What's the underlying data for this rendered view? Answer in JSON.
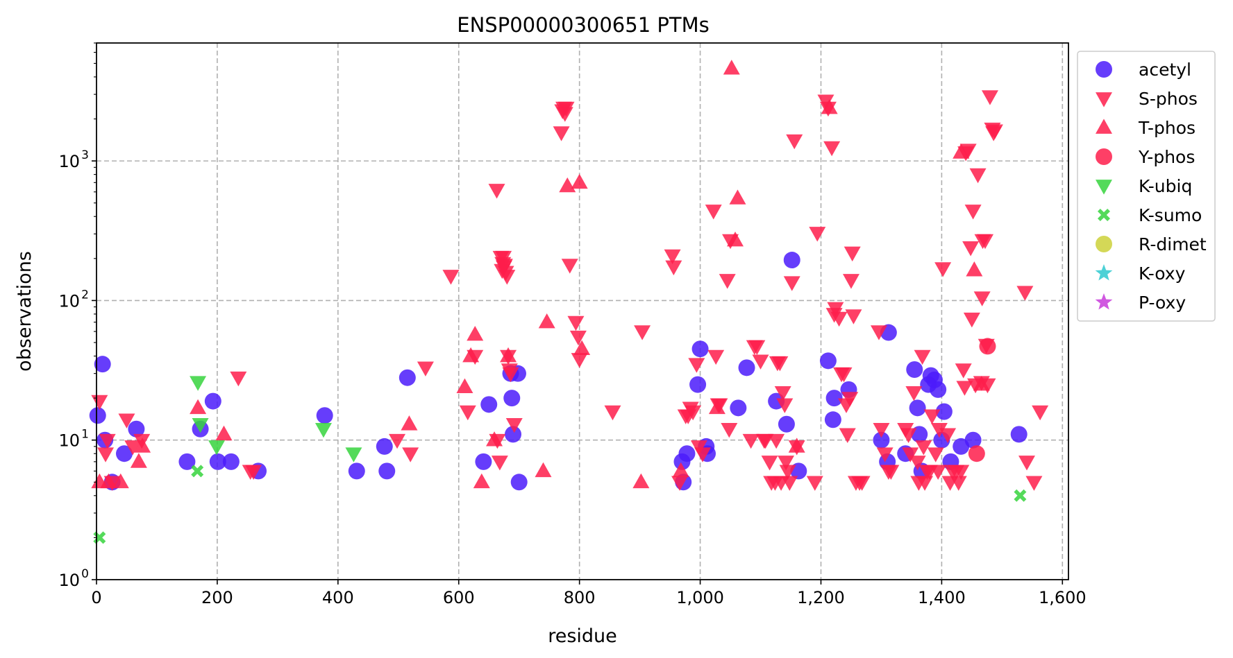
{
  "chart_data": {
    "type": "scatter",
    "title": "ENSP00000300651 PTMs",
    "xlabel": "residue",
    "ylabel": "observations",
    "xlim": [
      0,
      1610
    ],
    "ylim": [
      1,
      7000
    ],
    "yscale": "log",
    "grid": true,
    "legend_position": "outside-right",
    "x_ticks": [
      {
        "value": 0,
        "label": "0"
      },
      {
        "value": 200,
        "label": "200"
      },
      {
        "value": 400,
        "label": "400"
      },
      {
        "value": 600,
        "label": "600"
      },
      {
        "value": 800,
        "label": "800"
      },
      {
        "value": 1000,
        "label": "1,000"
      },
      {
        "value": 1200,
        "label": "1,200"
      },
      {
        "value": 1400,
        "label": "1,400"
      },
      {
        "value": 1600,
        "label": "1,600"
      }
    ],
    "y_ticks": [
      {
        "value": 1,
        "base": "10",
        "exp": "0"
      },
      {
        "value": 10,
        "base": "10",
        "exp": "1"
      },
      {
        "value": 100,
        "base": "10",
        "exp": "2"
      },
      {
        "value": 1000,
        "base": "10",
        "exp": "3"
      }
    ],
    "series": [
      {
        "name": "acetyl",
        "marker": "circle",
        "color": "#4b1bfa",
        "points": [
          [
            2,
            15
          ],
          [
            10,
            35
          ],
          [
            14,
            10
          ],
          [
            26,
            5
          ],
          [
            46,
            8
          ],
          [
            66,
            12
          ],
          [
            150,
            7
          ],
          [
            172,
            12
          ],
          [
            193,
            19
          ],
          [
            201,
            7
          ],
          [
            223,
            7
          ],
          [
            268,
            6
          ],
          [
            378,
            15
          ],
          [
            431,
            6
          ],
          [
            477,
            9
          ],
          [
            481,
            6
          ],
          [
            515,
            28
          ],
          [
            650,
            18
          ],
          [
            641,
            7
          ],
          [
            686,
            30
          ],
          [
            688,
            20
          ],
          [
            690,
            11
          ],
          [
            698,
            30
          ],
          [
            700,
            5
          ],
          [
            970,
            7
          ],
          [
            972,
            5
          ],
          [
            978,
            8
          ],
          [
            996,
            25
          ],
          [
            1000,
            45
          ],
          [
            1010,
            9
          ],
          [
            1012,
            8
          ],
          [
            1063,
            17
          ],
          [
            1077,
            33
          ],
          [
            1126,
            19
          ],
          [
            1143,
            13
          ],
          [
            1152,
            195
          ],
          [
            1163,
            6
          ],
          [
            1212,
            37
          ],
          [
            1220,
            14
          ],
          [
            1222,
            20
          ],
          [
            1246,
            23
          ],
          [
            1300,
            10
          ],
          [
            1310,
            7
          ],
          [
            1312,
            59
          ],
          [
            1340,
            8
          ],
          [
            1355,
            32
          ],
          [
            1360,
            17
          ],
          [
            1363,
            11
          ],
          [
            1367,
            6
          ],
          [
            1378,
            25
          ],
          [
            1382,
            29
          ],
          [
            1388,
            27
          ],
          [
            1394,
            23
          ],
          [
            1400,
            10
          ],
          [
            1404,
            16
          ],
          [
            1415,
            7
          ],
          [
            1432,
            9
          ],
          [
            1452,
            10
          ],
          [
            1528,
            11
          ]
        ]
      },
      {
        "name": "S-phos",
        "marker": "triangle-down",
        "color": "#fe1d4b",
        "points": [
          [
            5,
            19
          ],
          [
            15,
            8
          ],
          [
            18,
            10
          ],
          [
            26,
            5
          ],
          [
            50,
            14
          ],
          [
            60,
            9
          ],
          [
            75,
            10
          ],
          [
            235,
            28
          ],
          [
            255,
            6
          ],
          [
            260,
            6
          ],
          [
            498,
            10
          ],
          [
            520,
            8
          ],
          [
            545,
            33
          ],
          [
            587,
            150
          ],
          [
            615,
            16
          ],
          [
            627,
            40
          ],
          [
            663,
            620
          ],
          [
            664,
            10
          ],
          [
            668,
            7
          ],
          [
            670,
            205
          ],
          [
            672,
            165
          ],
          [
            673,
            185
          ],
          [
            674,
            205
          ],
          [
            675,
            175
          ],
          [
            676,
            180
          ],
          [
            678,
            160
          ],
          [
            680,
            150
          ],
          [
            682,
            40
          ],
          [
            684,
            32
          ],
          [
            686,
            30
          ],
          [
            692,
            13
          ],
          [
            770,
            1600
          ],
          [
            772,
            2300
          ],
          [
            774,
            2400
          ],
          [
            776,
            2200
          ],
          [
            778,
            2400
          ],
          [
            784,
            180
          ],
          [
            794,
            70
          ],
          [
            798,
            55
          ],
          [
            800,
            38
          ],
          [
            855,
            16
          ],
          [
            904,
            60
          ],
          [
            954,
            210
          ],
          [
            956,
            175
          ],
          [
            966,
            5
          ],
          [
            976,
            15
          ],
          [
            980,
            15
          ],
          [
            984,
            17
          ],
          [
            988,
            16
          ],
          [
            994,
            35
          ],
          [
            998,
            9
          ],
          [
            1004,
            8
          ],
          [
            1022,
            440
          ],
          [
            1026,
            40
          ],
          [
            1030,
            18
          ],
          [
            1032,
            18
          ],
          [
            1045,
            140
          ],
          [
            1050,
            270
          ],
          [
            1048,
            12
          ],
          [
            1084,
            10
          ],
          [
            1090,
            47
          ],
          [
            1094,
            47
          ],
          [
            1100,
            37
          ],
          [
            1106,
            10
          ],
          [
            1108,
            10
          ],
          [
            1115,
            7
          ],
          [
            1118,
            5
          ],
          [
            1124,
            5
          ],
          [
            1126,
            10
          ],
          [
            1128,
            36
          ],
          [
            1132,
            36
          ],
          [
            1134,
            5
          ],
          [
            1137,
            22
          ],
          [
            1140,
            18
          ],
          [
            1142,
            7
          ],
          [
            1145,
            6
          ],
          [
            1148,
            5
          ],
          [
            1152,
            135
          ],
          [
            1156,
            1400
          ],
          [
            1160,
            9
          ],
          [
            1190,
            5
          ],
          [
            1194,
            305
          ],
          [
            1208,
            2700
          ],
          [
            1212,
            2400
          ],
          [
            1218,
            1250
          ],
          [
            1222,
            80
          ],
          [
            1224,
            88
          ],
          [
            1230,
            75
          ],
          [
            1234,
            30
          ],
          [
            1238,
            30
          ],
          [
            1242,
            18
          ],
          [
            1244,
            11
          ],
          [
            1248,
            20
          ],
          [
            1250,
            140
          ],
          [
            1252,
            220
          ],
          [
            1254,
            78
          ],
          [
            1258,
            5
          ],
          [
            1264,
            5
          ],
          [
            1268,
            5
          ],
          [
            1296,
            60
          ],
          [
            1300,
            12
          ],
          [
            1306,
            8
          ],
          [
            1312,
            6
          ],
          [
            1316,
            6
          ],
          [
            1340,
            12
          ],
          [
            1345,
            11
          ],
          [
            1348,
            8
          ],
          [
            1354,
            22
          ],
          [
            1360,
            7
          ],
          [
            1362,
            5
          ],
          [
            1368,
            40
          ],
          [
            1370,
            9
          ],
          [
            1372,
            5
          ],
          [
            1376,
            6
          ],
          [
            1380,
            6
          ],
          [
            1384,
            15
          ],
          [
            1390,
            8
          ],
          [
            1394,
            6
          ],
          [
            1396,
            12
          ],
          [
            1402,
            170
          ],
          [
            1410,
            11
          ],
          [
            1414,
            5
          ],
          [
            1418,
            6
          ],
          [
            1424,
            6
          ],
          [
            1428,
            5
          ],
          [
            1432,
            6
          ],
          [
            1436,
            32
          ],
          [
            1438,
            24
          ],
          [
            1440,
            1150
          ],
          [
            1444,
            1200
          ],
          [
            1448,
            240
          ],
          [
            1450,
            74
          ],
          [
            1452,
            440
          ],
          [
            1456,
            25
          ],
          [
            1460,
            800
          ],
          [
            1466,
            26
          ],
          [
            1467,
            105
          ],
          [
            1468,
            270
          ],
          [
            1472,
            270
          ],
          [
            1474,
            48
          ],
          [
            1476,
            25
          ],
          [
            1480,
            2900
          ],
          [
            1484,
            1700
          ],
          [
            1486,
            1600
          ],
          [
            1488,
            1650
          ],
          [
            1538,
            115
          ],
          [
            1541,
            7
          ],
          [
            1553,
            5
          ],
          [
            1563,
            16
          ]
        ]
      },
      {
        "name": "T-phos",
        "marker": "triangle-up",
        "color": "#fe1d4b",
        "points": [
          [
            5,
            5
          ],
          [
            20,
            5
          ],
          [
            40,
            5
          ],
          [
            70,
            7
          ],
          [
            76,
            9
          ],
          [
            168,
            17
          ],
          [
            211,
            11
          ],
          [
            518,
            13
          ],
          [
            610,
            24
          ],
          [
            620,
            40
          ],
          [
            627,
            57
          ],
          [
            638,
            5
          ],
          [
            659,
            10
          ],
          [
            682,
            40
          ],
          [
            740,
            6
          ],
          [
            746,
            70
          ],
          [
            780,
            660
          ],
          [
            800,
            700
          ],
          [
            804,
            45
          ],
          [
            902,
            5
          ],
          [
            968,
            6
          ],
          [
            1028,
            17
          ],
          [
            1052,
            4600
          ],
          [
            1058,
            270
          ],
          [
            1062,
            540
          ],
          [
            1160,
            9
          ],
          [
            1214,
            2400
          ],
          [
            1432,
            1150
          ],
          [
            1454,
            165
          ],
          [
            1466,
            25
          ]
        ]
      },
      {
        "name": "Y-phos",
        "marker": "circle",
        "color": "#fe1d4b",
        "points": [
          [
            1458,
            8
          ],
          [
            1476,
            47
          ]
        ]
      },
      {
        "name": "K-ubiq",
        "marker": "triangle-down",
        "color": "#36d33d",
        "points": [
          [
            168,
            26
          ],
          [
            172,
            13
          ],
          [
            199,
            9
          ],
          [
            376,
            12
          ],
          [
            426,
            8
          ]
        ]
      },
      {
        "name": "K-sumo",
        "marker": "x",
        "color": "#36d33d",
        "points": [
          [
            5,
            2
          ],
          [
            167,
            6
          ],
          [
            1530,
            4
          ]
        ]
      },
      {
        "name": "R-dimet",
        "marker": "circle",
        "color": "#cdd13a",
        "points": []
      },
      {
        "name": "K-oxy",
        "marker": "star",
        "color": "#2ec9cf",
        "points": []
      },
      {
        "name": "P-oxy",
        "marker": "star",
        "color": "#c83bdb",
        "points": []
      }
    ]
  }
}
